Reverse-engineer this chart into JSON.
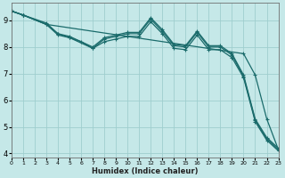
{
  "xlabel": "Humidex (Indice chaleur)",
  "bg_color": "#c5e8e8",
  "grid_color": "#9fcece",
  "line_color": "#1a6b6b",
  "xlim": [
    0,
    23
  ],
  "ylim": [
    3.85,
    9.65
  ],
  "xticks": [
    0,
    1,
    2,
    3,
    4,
    5,
    6,
    7,
    8,
    9,
    10,
    11,
    12,
    13,
    14,
    15,
    16,
    17,
    18,
    19,
    20,
    21,
    22,
    23
  ],
  "yticks": [
    4,
    5,
    6,
    7,
    8,
    9
  ],
  "lines": [
    {
      "x": [
        0,
        1,
        3,
        4,
        5,
        7,
        8,
        9,
        10,
        11,
        12,
        13,
        14,
        15,
        16,
        17,
        18,
        19,
        20,
        21,
        22,
        23
      ],
      "y": [
        9.35,
        9.2,
        8.9,
        8.5,
        8.4,
        8.0,
        8.35,
        8.45,
        8.55,
        8.55,
        9.1,
        8.65,
        8.1,
        8.05,
        8.6,
        8.05,
        8.05,
        7.75,
        6.95,
        5.3,
        4.6,
        4.2
      ]
    },
    {
      "x": [
        0,
        1,
        3,
        4,
        5,
        7,
        8,
        9,
        10,
        11,
        12,
        13,
        14,
        15,
        16,
        17,
        18,
        19,
        20,
        21,
        22,
        23
      ],
      "y": [
        9.35,
        9.2,
        8.85,
        8.45,
        8.35,
        7.95,
        8.3,
        8.4,
        8.5,
        8.5,
        9.05,
        8.58,
        8.05,
        8.0,
        8.55,
        8.0,
        8.0,
        7.7,
        6.9,
        5.25,
        4.55,
        4.15
      ]
    },
    {
      "x": [
        0,
        1,
        3,
        20,
        21,
        22,
        23
      ],
      "y": [
        9.35,
        9.2,
        8.85,
        7.75,
        6.95,
        5.3,
        4.15
      ]
    },
    {
      "x": [
        0,
        1,
        3,
        4,
        5,
        6,
        7,
        8,
        9,
        10,
        11,
        12,
        13,
        14,
        15,
        16,
        17,
        18,
        19,
        20,
        21,
        22,
        23
      ],
      "y": [
        9.35,
        9.2,
        8.85,
        8.5,
        8.35,
        8.2,
        7.95,
        8.2,
        8.3,
        8.4,
        8.4,
        8.95,
        8.5,
        7.95,
        7.9,
        8.45,
        7.9,
        7.9,
        7.6,
        6.85,
        5.2,
        4.5,
        4.1
      ]
    }
  ]
}
